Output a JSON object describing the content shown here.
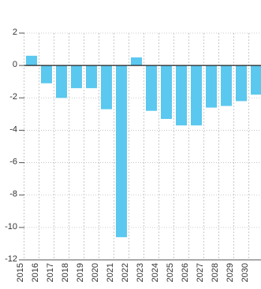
{
  "chart_data": {
    "type": "bar",
    "categories": [
      "2015",
      "2016",
      "2017",
      "2018",
      "2019",
      "2020",
      "2021",
      "2022",
      "2023",
      "2024",
      "2025",
      "2026",
      "2027",
      "2028",
      "2029",
      "2030"
    ],
    "values": [
      0.6,
      -1.1,
      -2.0,
      -1.4,
      -1.4,
      -2.7,
      -10.6,
      0.5,
      -2.8,
      -3.3,
      -3.7,
      -3.7,
      -2.6,
      -2.5,
      -2.2,
      -1.8
    ],
    "color": "#5bc8ef",
    "ylim": [
      -12,
      2
    ],
    "yticks": [
      2,
      0,
      -2,
      -4,
      -6,
      -8,
      -10,
      -12
    ],
    "grid": true
  }
}
